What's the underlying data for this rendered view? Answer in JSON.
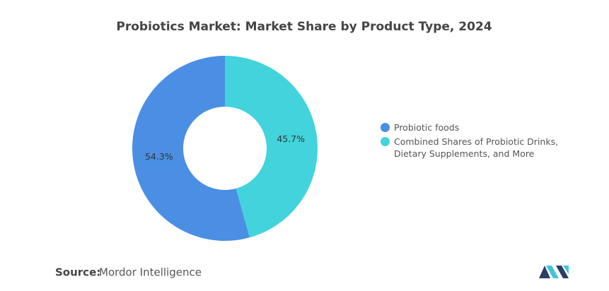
{
  "chart_data": {
    "type": "donut",
    "title": "Probiotics Market: Market Share by Product Type, 2024",
    "categories": [
      "Probiotic foods",
      "Combined Shares of Probiotic Drinks, Dietary Supplements, and More"
    ],
    "values": [
      54.3,
      45.7
    ],
    "value_labels": [
      "54.3%",
      "45.7%"
    ],
    "colors": [
      "#4a8fe3",
      "#42d3dc"
    ]
  },
  "source": {
    "label": "Source:",
    "text": "Mordor Intelligence"
  }
}
